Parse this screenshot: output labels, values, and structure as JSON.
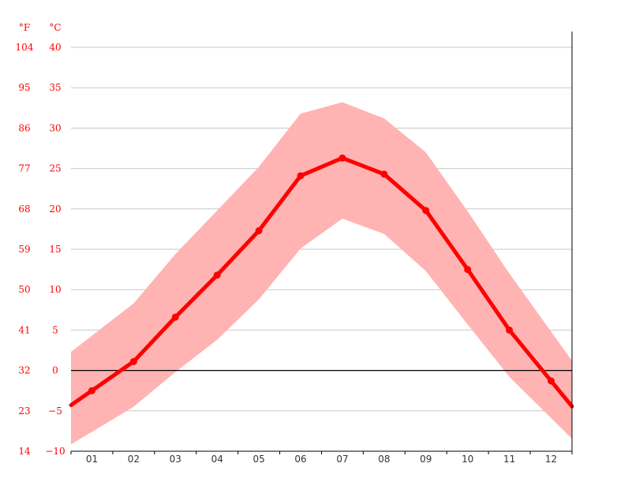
{
  "chart_data": {
    "type": "line",
    "title": "",
    "unit_labels": {
      "fahrenheit": "°F",
      "celsius": "°C"
    },
    "categories": [
      "01",
      "02",
      "03",
      "04",
      "05",
      "06",
      "07",
      "08",
      "09",
      "10",
      "11",
      "12"
    ],
    "y_ticks_celsius": [
      "40",
      "35",
      "30",
      "25",
      "20",
      "15",
      "10",
      "5",
      "0",
      "−5",
      "−10"
    ],
    "y_tick_values_celsius": [
      40,
      35,
      30,
      25,
      20,
      15,
      10,
      5,
      0,
      -5,
      -10
    ],
    "y_ticks_fahrenheit": [
      "104",
      "95",
      "86",
      "77",
      "68",
      "59",
      "50",
      "41",
      "32",
      "23",
      "14"
    ],
    "ylim": [
      -10,
      40
    ],
    "grid": true,
    "colors": {
      "line": "#ff0000",
      "band": "#ffb3b3",
      "grid": "#c8c8c8",
      "zero_line": "#000000",
      "tick_text": "#ff0000"
    },
    "series": [
      {
        "values": [
          -2.5,
          1.1,
          6.6,
          11.8,
          17.3,
          24.1,
          26.3,
          24.3,
          19.8,
          12.5,
          5.0,
          -1.3
        ]
      }
    ],
    "band": {
      "upper": [
        4.3,
        8.3,
        14.4,
        19.8,
        25.2,
        31.8,
        33.2,
        31.2,
        27.0,
        19.7,
        12.0,
        4.8
      ],
      "lower": [
        -7.6,
        -4.5,
        -0.2,
        3.8,
        8.8,
        15.1,
        18.8,
        16.9,
        12.3,
        5.7,
        -0.8,
        -5.9
      ]
    }
  }
}
